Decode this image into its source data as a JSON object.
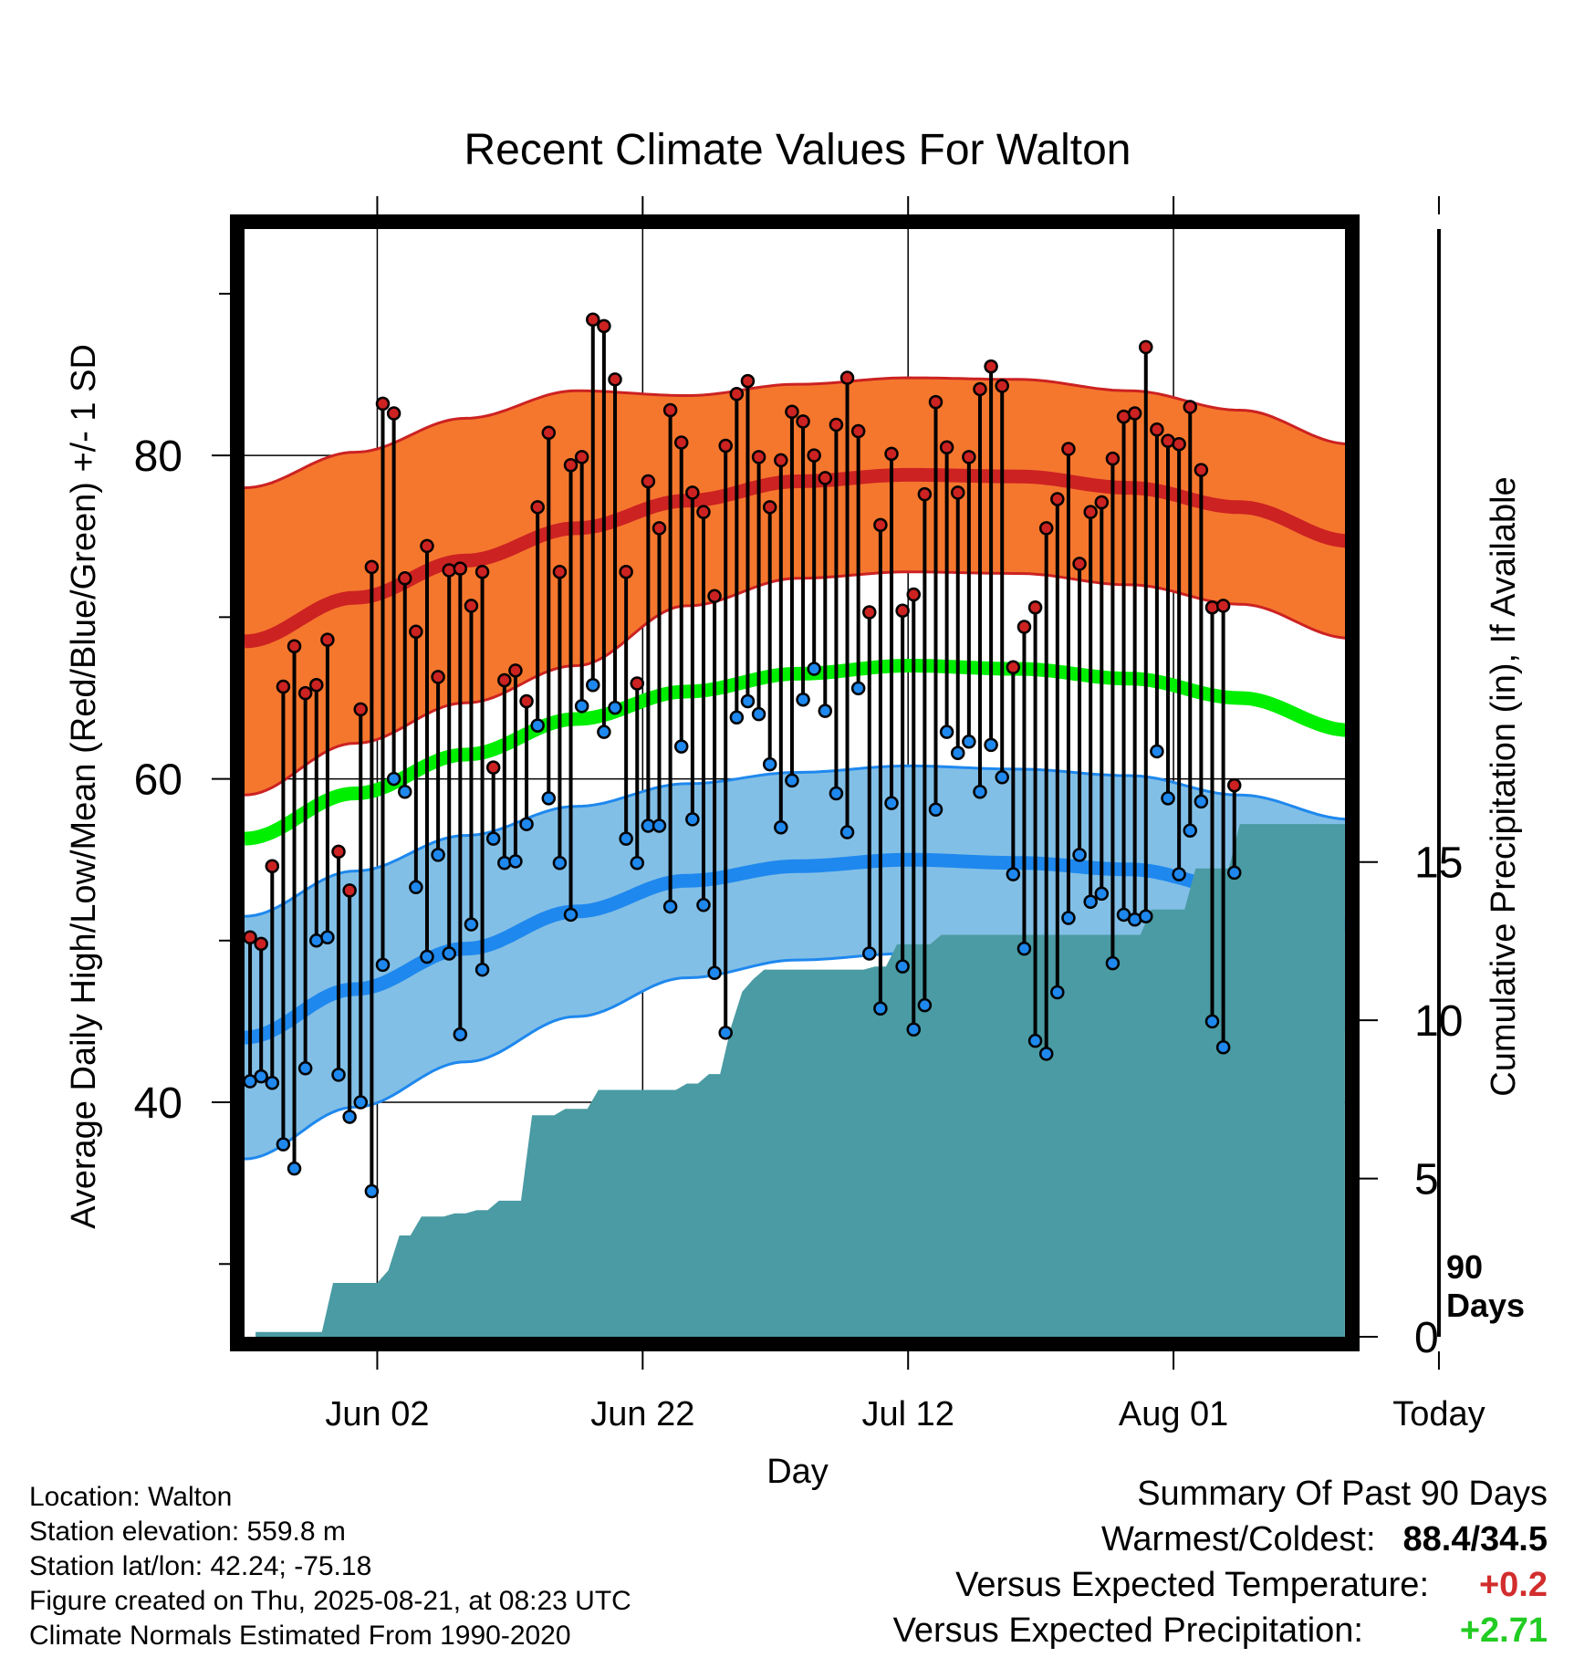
{
  "chart_data": {
    "type": "line",
    "title": "Recent Climate Values For Walton",
    "xlabel": "Day",
    "ylabel": "Average Daily High/Low/Mean (Red/Blue/Green) +/- 1 SD",
    "y2label": "Cumulative Precipitation (in), If Available",
    "x_tick_labels": [
      "Jun 02",
      "Jun 22",
      "Jul 12",
      "Aug 01",
      "Today"
    ],
    "y_ticks": [
      40,
      60,
      80
    ],
    "y2_ticks": [
      0,
      5,
      10,
      15
    ],
    "ylim": [
      25.5,
      94
    ],
    "y2lim": [
      0,
      35
    ],
    "today_marker_label": [
      "90",
      "Days"
    ],
    "colors": {
      "high": "#cc2222",
      "high_band": "#f5772e",
      "low": "#1e88ee",
      "low_band": "#82bfe6",
      "mean": "#00ee00",
      "precip": "#4a9ba3"
    },
    "normals": {
      "days": [
        0,
        10,
        20,
        30,
        40,
        50,
        60,
        70,
        80,
        90,
        100
      ],
      "high_mean": [
        68.5,
        71.2,
        73.5,
        75.5,
        77.2,
        78.4,
        78.8,
        78.7,
        78.0,
        76.8,
        74.7
      ],
      "high_sd": [
        9.5,
        9.0,
        8.8,
        8.5,
        6.5,
        6.0,
        6.0,
        6.0,
        6.0,
        6.0,
        6.0
      ],
      "low_mean": [
        44.0,
        47.0,
        49.5,
        51.8,
        53.7,
        54.6,
        55.0,
        54.8,
        54.4,
        53.2,
        51.0
      ],
      "low_sd": [
        7.5,
        7.3,
        7.0,
        6.5,
        6.0,
        5.8,
        5.8,
        5.8,
        5.8,
        5.8,
        6.5
      ],
      "mean": [
        56.3,
        59.1,
        61.5,
        63.7,
        65.4,
        66.5,
        67.0,
        66.8,
        66.2,
        65.0,
        63.0
      ]
    },
    "observed": {
      "day_offset": 0,
      "high": [
        50.2,
        49.8,
        54.6,
        65.7,
        68.2,
        65.3,
        65.8,
        68.6,
        55.5,
        53.1,
        64.3,
        73.1,
        83.2,
        82.6,
        72.4,
        69.1,
        74.4,
        66.3,
        72.9,
        73.0,
        70.7,
        72.8,
        60.7,
        66.1,
        66.7,
        64.8,
        76.8,
        81.4,
        72.8,
        79.4,
        79.9,
        88.4,
        88.0,
        84.7,
        72.8,
        65.9,
        78.4,
        75.5,
        82.8,
        80.8,
        77.7,
        76.5,
        71.3,
        80.6,
        83.8,
        84.6,
        79.9,
        76.8,
        79.7,
        82.7,
        82.1,
        80.0,
        78.6,
        81.9,
        84.8,
        81.5,
        70.3,
        75.7,
        80.1,
        70.4,
        71.4,
        77.6,
        83.3,
        80.5,
        77.7,
        79.9,
        84.1,
        85.5,
        84.3,
        66.9,
        69.4,
        70.6,
        75.5,
        77.3,
        80.4,
        73.3,
        76.5,
        77.1,
        79.8,
        82.4,
        82.6,
        86.7,
        81.6,
        80.9,
        80.7,
        83.0,
        79.1,
        70.6,
        70.7,
        59.6
      ],
      "low": [
        41.3,
        41.6,
        41.2,
        37.4,
        35.9,
        42.1,
        50.0,
        50.2,
        41.7,
        39.1,
        40.0,
        34.5,
        48.5,
        60.0,
        59.2,
        53.3,
        49.0,
        55.3,
        49.2,
        44.2,
        51.0,
        48.2,
        56.3,
        54.8,
        54.9,
        57.2,
        63.3,
        58.8,
        54.8,
        51.6,
        64.5,
        65.8,
        62.9,
        64.4,
        56.3,
        54.8,
        57.1,
        57.1,
        52.1,
        62.0,
        57.5,
        52.2,
        48.0,
        44.3,
        63.8,
        64.8,
        64.0,
        60.9,
        57.0,
        59.9,
        64.9,
        66.8,
        64.2,
        59.1,
        56.7,
        65.6,
        49.2,
        45.8,
        58.5,
        48.4,
        44.5,
        46.0,
        58.1,
        62.9,
        61.6,
        62.3,
        59.2,
        62.1,
        60.1,
        54.1,
        49.5,
        43.8,
        43.0,
        46.8,
        51.4,
        55.3,
        52.4,
        52.9,
        48.6,
        51.6,
        51.3,
        51.5,
        61.7,
        58.8,
        54.1,
        56.8,
        58.6,
        45.0,
        43.4,
        54.2
      ]
    },
    "precip_cumulative": {
      "days": [
        1,
        7,
        8,
        12,
        13,
        14,
        15,
        16,
        17,
        18,
        19,
        20,
        21,
        22,
        23,
        24,
        25,
        26,
        27,
        28,
        29,
        30,
        31,
        32,
        33,
        34,
        35,
        36,
        37,
        38,
        39,
        40,
        41,
        42,
        43,
        44,
        45,
        46,
        47,
        48,
        49,
        50,
        51,
        52,
        53,
        54,
        55,
        56,
        57,
        58,
        59,
        60,
        61,
        62,
        63,
        64,
        65,
        66,
        67,
        68,
        69,
        70,
        71,
        72,
        73,
        74,
        75,
        76,
        77,
        78,
        79,
        80,
        81,
        82,
        83,
        84,
        85,
        86,
        87,
        88,
        89,
        90,
        91,
        99.5
      ],
      "values": [
        0.15,
        0.15,
        1.7,
        1.7,
        2.1,
        3.2,
        3.2,
        3.8,
        3.8,
        3.8,
        3.9,
        3.9,
        4.0,
        4.0,
        4.3,
        4.3,
        4.3,
        7.0,
        7.0,
        7.0,
        7.2,
        7.2,
        7.2,
        7.8,
        7.8,
        7.8,
        7.8,
        7.8,
        7.8,
        7.8,
        7.8,
        8.0,
        8.0,
        8.3,
        8.3,
        9.8,
        10.9,
        11.3,
        11.6,
        11.6,
        11.6,
        11.6,
        11.6,
        11.6,
        11.6,
        11.6,
        11.6,
        11.6,
        11.7,
        11.7,
        12.4,
        12.4,
        12.4,
        12.4,
        12.7,
        12.7,
        12.7,
        12.7,
        12.7,
        12.7,
        12.7,
        12.7,
        12.7,
        12.7,
        12.7,
        12.7,
        12.7,
        12.7,
        12.7,
        12.7,
        12.7,
        12.7,
        12.7,
        13.5,
        13.5,
        13.5,
        13.5,
        14.8,
        14.8,
        14.8,
        14.8,
        16.2,
        16.2,
        16.2
      ]
    }
  },
  "location_info": [
    "Location: Walton",
    "Station elevation: 559.8 m",
    "Station lat/lon: 42.24; -75.18",
    "Figure created on Thu, 2025-08-21, at 08:23 UTC",
    "Climate Normals Estimated From 1990-2020"
  ],
  "summary": {
    "heading": "Summary Of Past 90 Days",
    "warmest_coldest_label": "Warmest/Coldest:",
    "warmest_coldest_value": "88.4/34.5",
    "temp_label": "Versus Expected Temperature:",
    "temp_value": "+0.2",
    "temp_color": "#d22d2d",
    "precip_label": "Versus Expected Precipitation:",
    "precip_value": "+2.71",
    "precip_color": "#22cc22"
  }
}
